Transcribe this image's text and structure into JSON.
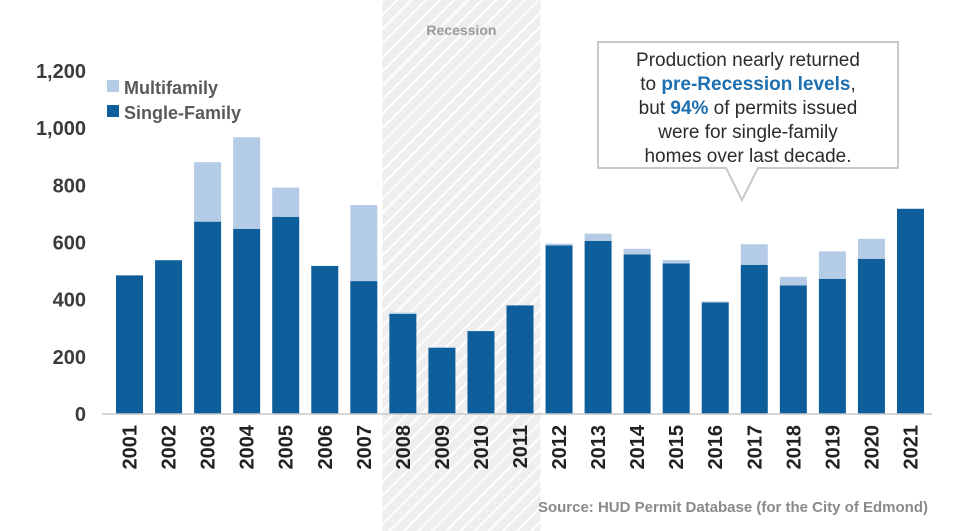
{
  "colors": {
    "single_family": "#0f5e9c",
    "multifamily": "#b4cce6",
    "recession_shade": "#eeeeee",
    "highlight": "#1d6fb0"
  },
  "chart_data": {
    "type": "bar",
    "stacked": true,
    "categories": [
      "2001",
      "2002",
      "2003",
      "2004",
      "2005",
      "2006",
      "2007",
      "2008",
      "2009",
      "2010",
      "2011",
      "2012",
      "2013",
      "2014",
      "2015",
      "2016",
      "2017",
      "2018",
      "2019",
      "2020",
      "2021"
    ],
    "series": [
      {
        "name": "Single-Family",
        "values": [
          485,
          538,
          673,
          648,
          690,
          518,
          465,
          350,
          232,
          290,
          380,
          590,
          606,
          558,
          527,
          390,
          522,
          450,
          473,
          543,
          718
        ]
      },
      {
        "name": "Multifamily",
        "values": [
          0,
          0,
          208,
          320,
          102,
          0,
          266,
          5,
          0,
          0,
          0,
          6,
          25,
          20,
          12,
          4,
          72,
          30,
          96,
          70,
          0
        ]
      }
    ],
    "ylim": [
      0,
      1200
    ],
    "yticks": [
      "0",
      "200",
      "400",
      "600",
      "800",
      "1,000",
      "1,200"
    ],
    "ytick_values": [
      0,
      200,
      400,
      600,
      800,
      1000,
      1200
    ],
    "legend": [
      "Multifamily",
      "Single-Family"
    ],
    "legend_position": "top-left",
    "shaded_region": {
      "label": "Recession",
      "from": "2008",
      "to": "2011"
    },
    "annotation": {
      "line1": "Production nearly returned",
      "line2_prefix": "to ",
      "line2_highlight": "pre-Recession levels",
      "line2_suffix": ",",
      "line3_prefix": "but ",
      "line3_highlight": "94%",
      "line3_suffix": " of permits issued",
      "line4": "were for single-family",
      "line5": "homes over last decade."
    },
    "source": "Source: HUD Permit Database (for the City of Edmond)"
  }
}
